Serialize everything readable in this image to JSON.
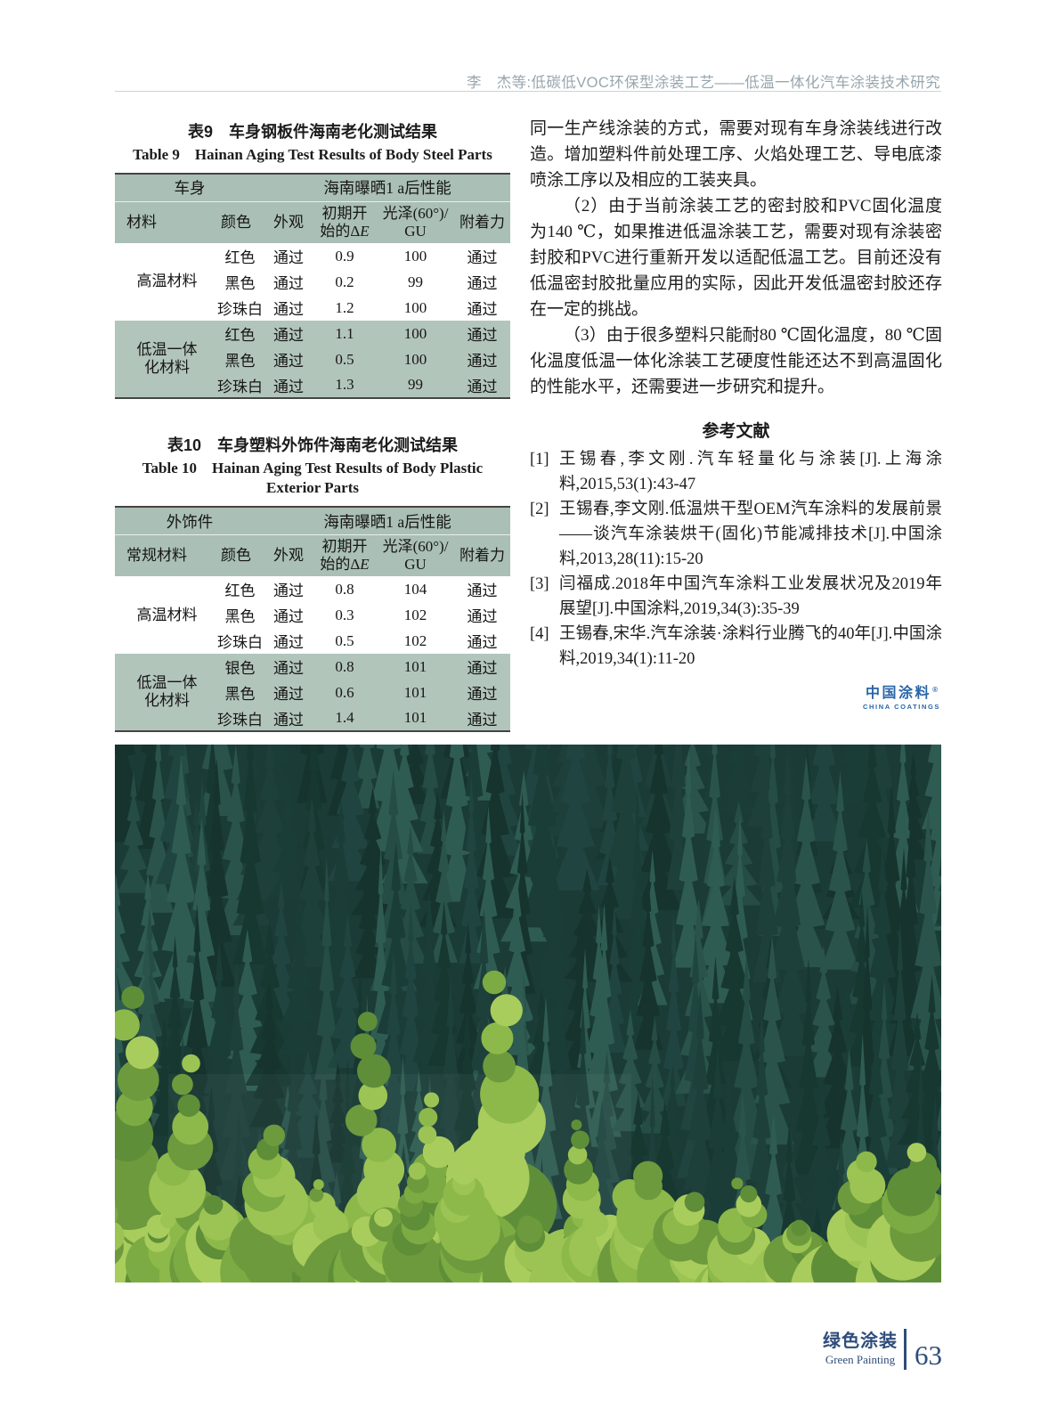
{
  "header": {
    "running_title": "李　杰等:低碳低VOC环保型涂装工艺——低温一体化汽车涂装技术研究"
  },
  "tables": {
    "table9": {
      "title_zh": "表9　车身钢板件海南老化测试结果",
      "title_en": "Table 9　Hainan Aging Test Results of Body Steel Parts",
      "group_header_left": "车身",
      "group_header_right": "海南曝晒1 a后性能",
      "columns": [
        "材料",
        "颜色",
        "外观",
        "初期开\n始的ΔE",
        "光泽(60°)/\nGU",
        "附着力"
      ],
      "groups": [
        {
          "material": "高温材料",
          "highlight": false,
          "rows": [
            [
              "红色",
              "通过",
              "0.9",
              "100",
              "通过"
            ],
            [
              "黑色",
              "通过",
              "0.2",
              "99",
              "通过"
            ],
            [
              "珍珠白",
              "通过",
              "1.2",
              "100",
              "通过"
            ]
          ]
        },
        {
          "material": "低温一体\n化材料",
          "highlight": true,
          "rows": [
            [
              "红色",
              "通过",
              "1.1",
              "100",
              "通过"
            ],
            [
              "黑色",
              "通过",
              "0.5",
              "100",
              "通过"
            ],
            [
              "珍珠白",
              "通过",
              "1.3",
              "99",
              "通过"
            ]
          ]
        }
      ]
    },
    "table10": {
      "title_zh": "表10　车身塑料外饰件海南老化测试结果",
      "title_en": "Table 10　Hainan Aging Test Results of Body Plastic\nExterior Parts",
      "group_header_left": "外饰件",
      "group_header_right": "海南曝晒1 a后性能",
      "columns": [
        "常规材料",
        "颜色",
        "外观",
        "初期开\n始的ΔE",
        "光泽(60°)/\nGU",
        "附着力"
      ],
      "groups": [
        {
          "material": "高温材料",
          "highlight": false,
          "rows": [
            [
              "红色",
              "通过",
              "0.8",
              "104",
              "通过"
            ],
            [
              "黑色",
              "通过",
              "0.3",
              "102",
              "通过"
            ],
            [
              "珍珠白",
              "通过",
              "0.5",
              "102",
              "通过"
            ]
          ]
        },
        {
          "material": "低温一体\n化材料",
          "highlight": true,
          "rows": [
            [
              "银色",
              "通过",
              "0.8",
              "101",
              "通过"
            ],
            [
              "黑色",
              "通过",
              "0.6",
              "101",
              "通过"
            ],
            [
              "珍珠白",
              "通过",
              "1.4",
              "101",
              "通过"
            ]
          ]
        }
      ]
    }
  },
  "article": {
    "paragraphs": [
      "同一生产线涂装的方式，需要对现有车身涂装线进行改造。增加塑料件前处理工序、火焰处理工艺、导电底漆喷涂工序以及相应的工装夹具。",
      "（2）由于当前涂装工艺的密封胶和PVC固化温度为140 ℃，如果推进低温涂装工艺，需要对现有涂装密封胶和PVC进行重新开发以适配低温工艺。目前还没有低温密封胶批量应用的实际，因此开发低温密封胶还存在一定的挑战。",
      "（3）由于很多塑料只能耐80 ℃固化温度，80 ℃固化温度低温一体化涂装工艺硬度性能还达不到高温固化的性能水平，还需要进一步研究和提升。"
    ]
  },
  "references": {
    "heading": "参考文献",
    "items": [
      {
        "marker": "[1]",
        "text": "王锡春,李文刚.汽车轻量化与涂装[J].上海涂料,2015,53(1):43-47"
      },
      {
        "marker": "[2]",
        "text": "王锡春,李文刚.低温烘干型OEM汽车涂料的发展前景——谈汽车涂装烘干(固化)节能减排技术[J].中国涂料,2013,28(11):15-20"
      },
      {
        "marker": "[3]",
        "text": "闫福成.2018年中国汽车涂料工业发展状况及2019年展望[J].中国涂料,2019,34(3):35-39"
      },
      {
        "marker": "[4]",
        "text": "王锡春,宋华.汽车涂装·涂料行业腾飞的40年[J].中国涂料,2019,34(1):11-20"
      }
    ]
  },
  "logo": {
    "zh": "中国涂料",
    "mark": "®",
    "en": "CHINA COATINGS"
  },
  "footer": {
    "journal_zh": "绿色涂装",
    "journal_en": "Green Painting",
    "page_number": "63"
  },
  "colors": {
    "table_header_bg": "#aabfb5",
    "table_highlight_bg": "#b2c5bb",
    "logo_blue": "#2866a8",
    "footer_navy": "#2e4d7b",
    "running_head_gray": "#98a6ae"
  }
}
